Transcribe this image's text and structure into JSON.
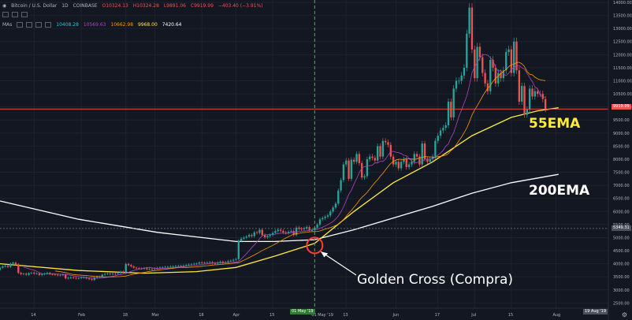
{
  "header": {
    "symbol": "Bitcoin / U.S. Dollar",
    "interval": "1D",
    "exchange": "COINBASE",
    "open": "O10324.13",
    "high": "H10324.28",
    "low": "L9891.06",
    "close": "C9919.99",
    "change": "−403.40 (−3.91%)",
    "indicator_name": "MAs",
    "ma_values": [
      "10408.28",
      "10569.63",
      "10662.98",
      "9968.00",
      "7420.64"
    ],
    "ma_colors": [
      "#26c6da",
      "#ab47bc",
      "#ff9800",
      "#ffeb3b",
      "#ffffff"
    ]
  },
  "annotations": {
    "ema55": "55EMA",
    "ema200": "200EMA",
    "golden_cross": "Golden Cross (Compra)"
  },
  "price_tags": {
    "last_price": "9919.99",
    "crosshair_price": "5349.31",
    "crosshair_date": "01 May '19",
    "right_date": "19 Aug '19"
  },
  "colors": {
    "background": "#131722",
    "up": "#26a69a",
    "down": "#ef5350",
    "ema55": "#ffeb3b",
    "ema200": "#ffffff",
    "annotation_yellow": "#ffeb3b",
    "annotation_white": "#ffffff",
    "cross_circle": "#ff3b3b",
    "crosshair": "#4caf50"
  },
  "chart_data": {
    "type": "candlestick",
    "title": "Bitcoin / U.S. Dollar, 1D, COINBASE",
    "ylim": [
      2300,
      14000
    ],
    "y_ticks": [
      2500,
      3000,
      3500,
      4000,
      4500,
      5000,
      5500,
      6000,
      6500,
      7000,
      7500,
      8000,
      8500,
      9000,
      9500,
      10000,
      10500,
      11000,
      11500,
      12000,
      12500,
      13000,
      13500,
      14000
    ],
    "x_ticks": [
      "14",
      "Feb",
      "18",
      "Mar",
      "18",
      "Apr",
      "15",
      "01 May '19",
      "13",
      "Jun",
      "17",
      "Jul",
      "15",
      "Aug"
    ],
    "x_tick_days": [
      13,
      31,
      48,
      59,
      77,
      90,
      104,
      120,
      132,
      151,
      167,
      181,
      195,
      212
    ],
    "x_range_days": [
      0,
      232
    ],
    "date_start_label": "2019-01-01",
    "closes": [
      3850,
      3900,
      3920,
      3880,
      4000,
      4040,
      3980,
      3650,
      3600,
      3620,
      3580,
      3640,
      3660,
      3620,
      3630,
      3570,
      3600,
      3620,
      3650,
      3600,
      3590,
      3580,
      3560,
      3570,
      3580,
      3440,
      3460,
      3480,
      3460,
      3440,
      3450,
      3470,
      3480,
      3440,
      3410,
      3380,
      3470,
      3500,
      3510,
      3580,
      3610,
      3620,
      3600,
      3620,
      3610,
      3640,
      3700,
      3670,
      3990,
      3950,
      3900,
      3850,
      3830,
      3820,
      3810,
      3830,
      3790,
      3810,
      3800,
      3820,
      3840,
      3860,
      3860,
      3880,
      3880,
      3900,
      3900,
      3910,
      3920,
      3920,
      3930,
      3950,
      3970,
      3980,
      4000,
      4010,
      4050,
      4040,
      4030,
      4050,
      4060,
      4020,
      4010,
      4050,
      4080,
      4030,
      4060,
      4100,
      4120,
      4150,
      4180,
      4880,
      4960,
      5000,
      5040,
      5100,
      5060,
      5200,
      5180,
      5300,
      5100,
      5010,
      5060,
      5100,
      5180,
      5250,
      5300,
      5260,
      5200,
      5180,
      5220,
      5250,
      5100,
      5380,
      5340,
      5320,
      5360,
      5400,
      5280,
      5290,
      5380,
      5500,
      5700,
      5750,
      5800,
      5850,
      6000,
      6150,
      6300,
      6800,
      7200,
      7800,
      7950,
      7250,
      7980,
      7900,
      8200,
      7850,
      7300,
      7350,
      8000,
      8100,
      8050,
      7950,
      8500,
      8100,
      8700,
      8650,
      8550,
      8100,
      7800,
      7900,
      7650,
      7900,
      8000,
      7700,
      7800,
      7900,
      8200,
      8100,
      7800,
      8600,
      8000,
      7900,
      8000,
      8100,
      8700,
      8900,
      9100,
      9200,
      9300,
      10200,
      9600,
      10700,
      11000,
      11000,
      11200,
      11500,
      12800,
      13800,
      12200,
      11100,
      12300,
      11900,
      11300,
      10900,
      10600,
      11800,
      11500,
      10900,
      11300,
      11100,
      11400,
      12100,
      12200,
      11300,
      12500,
      11400,
      10200,
      10800,
      9700,
      9900,
      10700,
      10400,
      10600,
      10500,
      10500,
      10300,
      9919.99
    ],
    "ema55_points": [
      [
        0,
        4000
      ],
      [
        30,
        3740
      ],
      [
        55,
        3640
      ],
      [
        75,
        3700
      ],
      [
        90,
        3860
      ],
      [
        105,
        4300
      ],
      [
        120,
        4780
      ],
      [
        135,
        6000
      ],
      [
        150,
        7100
      ],
      [
        165,
        7900
      ],
      [
        180,
        8900
      ],
      [
        195,
        9600
      ],
      [
        205,
        9850
      ],
      [
        213,
        9968
      ]
    ],
    "ema200_points": [
      [
        0,
        6400
      ],
      [
        30,
        5700
      ],
      [
        60,
        5200
      ],
      [
        90,
        4850
      ],
      [
        105,
        4850
      ],
      [
        120,
        4920
      ],
      [
        135,
        5300
      ],
      [
        150,
        5750
      ],
      [
        165,
        6200
      ],
      [
        180,
        6700
      ],
      [
        195,
        7100
      ],
      [
        213,
        7420.64
      ]
    ],
    "golden_cross": {
      "day": 120,
      "price": 4700
    }
  }
}
